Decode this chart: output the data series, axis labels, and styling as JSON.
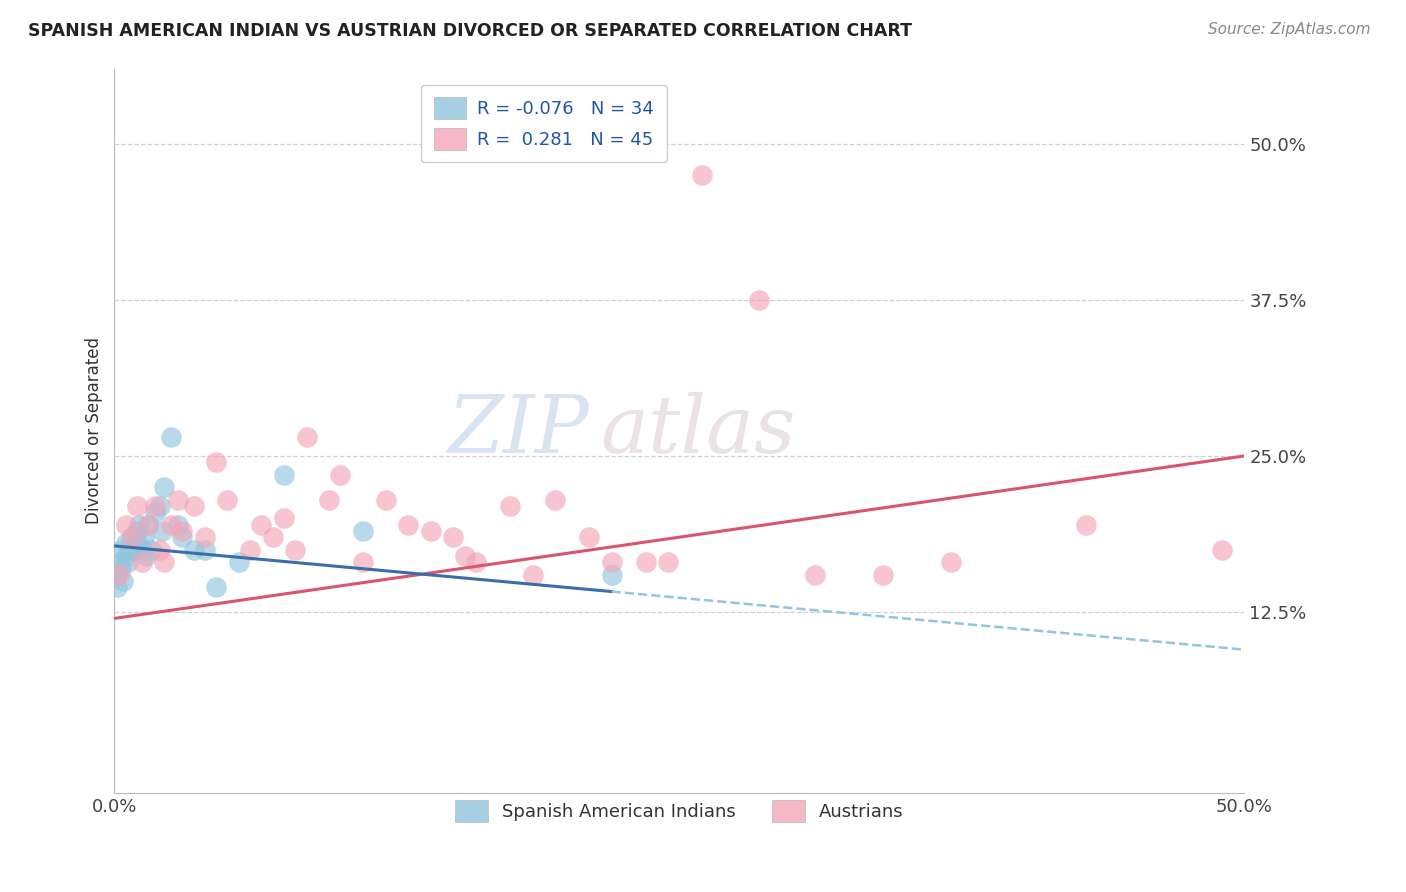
{
  "title": "SPANISH AMERICAN INDIAN VS AUSTRIAN DIVORCED OR SEPARATED CORRELATION CHART",
  "source": "Source: ZipAtlas.com",
  "ylabel": "Divorced or Separated",
  "watermark": "ZIPatlas",
  "xlim": [
    0.0,
    0.5
  ],
  "ylim": [
    -0.02,
    0.56
  ],
  "ytick_labels": [
    "12.5%",
    "25.0%",
    "37.5%",
    "50.0%"
  ],
  "ytick_positions": [
    0.125,
    0.25,
    0.375,
    0.5
  ],
  "color_blue": "#92c5de",
  "color_pink": "#f4a6b8",
  "line_blue_solid": "#3a6ea8",
  "line_blue_dash": "#92c5de",
  "line_pink_solid": "#d9546e",
  "grid_color": "#d0d0d0",
  "background_color": "#ffffff",
  "blue_x": [
    0.001,
    0.001,
    0.002,
    0.003,
    0.003,
    0.004,
    0.005,
    0.005,
    0.006,
    0.007,
    0.008,
    0.009,
    0.01,
    0.01,
    0.011,
    0.012,
    0.013,
    0.014,
    0.015,
    0.016,
    0.018,
    0.02,
    0.021,
    0.022,
    0.025,
    0.028,
    0.03,
    0.035,
    0.04,
    0.045,
    0.055,
    0.075,
    0.11,
    0.22
  ],
  "blue_y": [
    0.155,
    0.145,
    0.165,
    0.175,
    0.16,
    0.15,
    0.18,
    0.17,
    0.165,
    0.175,
    0.185,
    0.175,
    0.19,
    0.18,
    0.195,
    0.175,
    0.185,
    0.17,
    0.195,
    0.175,
    0.205,
    0.21,
    0.19,
    0.225,
    0.265,
    0.195,
    0.185,
    0.175,
    0.175,
    0.145,
    0.165,
    0.235,
    0.19,
    0.155
  ],
  "pink_x": [
    0.002,
    0.005,
    0.008,
    0.01,
    0.012,
    0.015,
    0.018,
    0.02,
    0.022,
    0.025,
    0.028,
    0.03,
    0.035,
    0.04,
    0.045,
    0.05,
    0.06,
    0.065,
    0.07,
    0.075,
    0.08,
    0.085,
    0.095,
    0.1,
    0.11,
    0.12,
    0.13,
    0.14,
    0.15,
    0.155,
    0.16,
    0.175,
    0.185,
    0.195,
    0.21,
    0.22,
    0.235,
    0.245,
    0.26,
    0.285,
    0.31,
    0.34,
    0.37,
    0.43,
    0.49
  ],
  "pink_y": [
    0.155,
    0.195,
    0.185,
    0.21,
    0.165,
    0.195,
    0.21,
    0.175,
    0.165,
    0.195,
    0.215,
    0.19,
    0.21,
    0.185,
    0.245,
    0.215,
    0.175,
    0.195,
    0.185,
    0.2,
    0.175,
    0.265,
    0.215,
    0.235,
    0.165,
    0.215,
    0.195,
    0.19,
    0.185,
    0.17,
    0.165,
    0.21,
    0.155,
    0.215,
    0.185,
    0.165,
    0.165,
    0.165,
    0.475,
    0.375,
    0.155,
    0.155,
    0.165,
    0.195,
    0.175
  ]
}
